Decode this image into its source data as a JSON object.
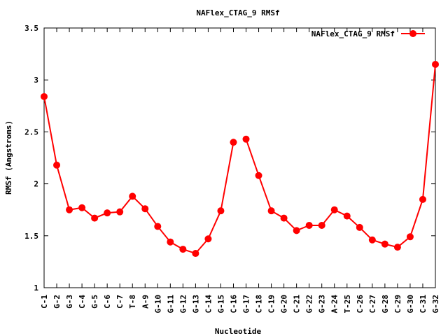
{
  "chart_data": {
    "type": "line",
    "title": "NAFlex_CTAG_9 RMSf",
    "xlabel": "Nucleotide",
    "ylabel": "RMSf (Angstroms)",
    "ylim": [
      1,
      3.5
    ],
    "yticks": [
      1,
      1.5,
      2,
      2.5,
      3,
      3.5
    ],
    "ytick_labels": [
      "1",
      "1.5",
      "2",
      "2.5",
      "3",
      "3.5"
    ],
    "legend_position": "top-right",
    "grid": false,
    "line_color": "#ff0000",
    "categories": [
      "C-1",
      "G-2",
      "G-3",
      "C-4",
      "G-5",
      "C-6",
      "C-7",
      "T-8",
      "A-9",
      "G-10",
      "G-11",
      "G-12",
      "G-13",
      "C-14",
      "G-15",
      "C-16",
      "G-17",
      "C-18",
      "C-19",
      "G-20",
      "C-21",
      "G-22",
      "G-23",
      "A-24",
      "T-25",
      "C-26",
      "C-27",
      "G-28",
      "C-29",
      "G-30",
      "C-31",
      "G-32"
    ],
    "series": [
      {
        "name": "NAFlex_CTAG_9 RMSf",
        "segments": [
          [
            2.84,
            2.18,
            1.75,
            1.77,
            1.67,
            1.72,
            1.73,
            1.88,
            1.76,
            1.59,
            1.44,
            1.37,
            1.33,
            1.47,
            1.74,
            2.4
          ],
          [
            2.43,
            2.08,
            1.74,
            1.67,
            1.55,
            1.6,
            1.6,
            1.75,
            1.69,
            1.58,
            1.46,
            1.42,
            1.39,
            1.49,
            1.85,
            3.15
          ]
        ]
      }
    ]
  }
}
